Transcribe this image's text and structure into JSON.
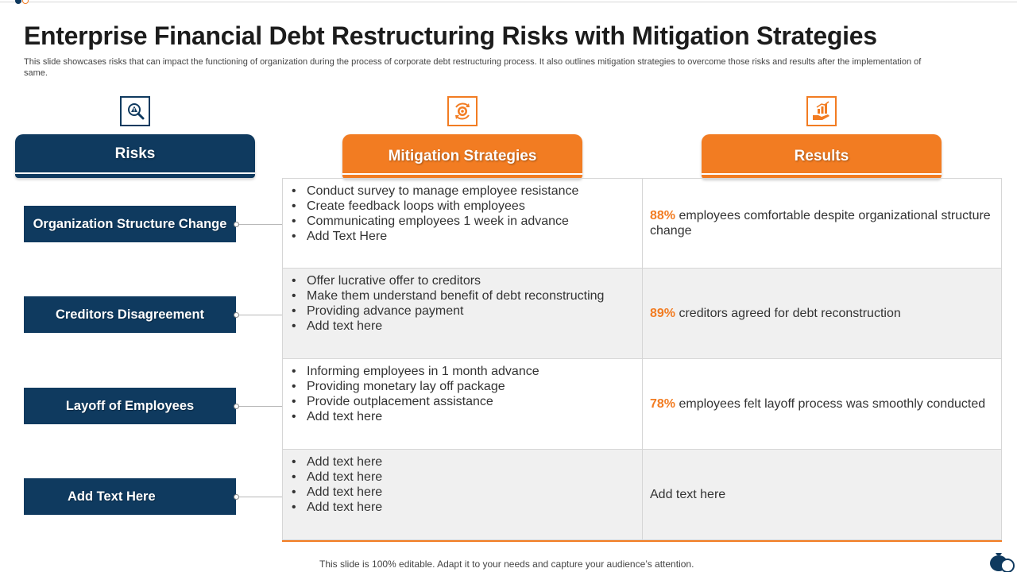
{
  "title": "Enterprise Financial Debt Restructuring Risks with Mitigation Strategies",
  "subtitle": "This slide showcases risks that can impact the functioning of organization during the process of corporate debt restructuring process. It also outlines mitigation strategies to overcome those risks and results after the implementation of same.",
  "headers": {
    "risks": "Risks",
    "mitigation": "Mitigation Strategies",
    "results": "Results"
  },
  "icons": {
    "risks": "magnifier-warning-icon",
    "mitigation": "target-cycle-icon",
    "results": "growth-chart-hand-icon"
  },
  "colors": {
    "navy": "#0f3a5f",
    "orange": "#f27c22"
  },
  "rows": [
    {
      "risk": "Organization Structure Change",
      "strategies": [
        "Conduct survey to manage employee resistance",
        "Create feedback loops with employees",
        "Communicating employees 1 week in advance",
        "Add Text Here"
      ],
      "result_pct": "88%",
      "result_text": " employees comfortable despite organizational structure  change"
    },
    {
      "risk": "Creditors Disagreement",
      "strategies": [
        "Offer lucrative offer to creditors",
        "Make them understand  benefit of debt reconstructing",
        "Providing advance payment",
        "Add text here"
      ],
      "result_pct": "89%",
      "result_text": " creditors agreed for debt reconstruction"
    },
    {
      "risk": "Layoff of Employees",
      "strategies": [
        "Informing  employees in 1 month advance",
        "Providing monetary lay off package",
        "Provide outplacement  assistance",
        "Add text here"
      ],
      "result_pct": "78%",
      "result_text": " employees felt layoff process was smoothly  conducted"
    },
    {
      "risk": "Add Text Here",
      "strategies": [
        "Add text here",
        "Add text here",
        "Add text here",
        "Add text here"
      ],
      "result_pct": "",
      "result_text": "Add text here"
    }
  ],
  "footer": "This slide is 100% editable. Adapt it to your needs and capture your audience’s attention."
}
